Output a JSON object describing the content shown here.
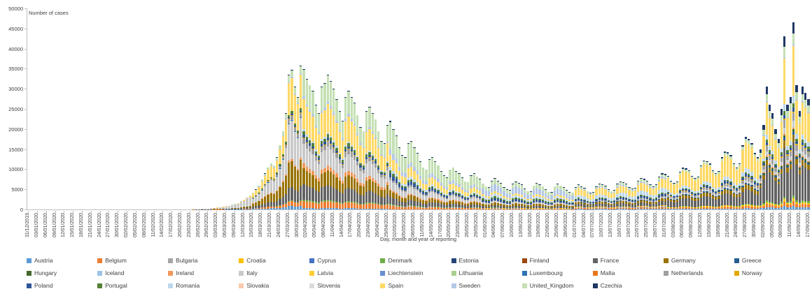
{
  "chart_data": {
    "type": "stacked_bar",
    "title": "",
    "ylabel": "Number of cases",
    "xlabel": "Day, month and year of reporting",
    "ylim": [
      0,
      50000
    ],
    "y_ticks": [
      0,
      5000,
      10000,
      15000,
      20000,
      25000,
      30000,
      35000,
      40000,
      45000,
      50000
    ],
    "grid": false,
    "legend_position": "bottom",
    "x_tick_every_days": 3,
    "x_tick_labels": [
      "31/12/2019",
      "03/01/2020",
      "06/01/2020",
      "09/01/2020",
      "12/01/2020",
      "15/01/2020",
      "18/01/2020",
      "21/01/2020",
      "24/01/2020",
      "27/01/2020",
      "30/01/2020",
      "02/02/2020",
      "05/02/2020",
      "08/02/2020",
      "11/02/2020",
      "14/02/2020",
      "17/02/2020",
      "20/02/2020",
      "23/02/2020",
      "26/02/2020",
      "29/02/2020",
      "03/03/2020",
      "06/03/2020",
      "09/03/2020",
      "12/03/2020",
      "15/03/2020",
      "18/03/2020",
      "21/03/2020",
      "24/03/2020",
      "27/03/2020",
      "30/03/2020",
      "02/04/2020",
      "05/04/2020",
      "08/04/2020",
      "11/04/2020",
      "14/04/2020",
      "17/04/2020",
      "20/04/2020",
      "23/04/2020",
      "26/04/2020",
      "29/04/2020",
      "02/05/2020",
      "05/05/2020",
      "08/05/2020",
      "11/05/2020",
      "14/05/2020",
      "17/05/2020",
      "20/05/2020",
      "23/05/2020",
      "26/05/2020",
      "29/05/2020",
      "01/06/2020",
      "04/06/2020",
      "07/06/2020",
      "10/06/2020",
      "13/06/2020",
      "16/06/2020",
      "19/06/2020",
      "22/06/2020",
      "25/06/2020",
      "28/06/2020",
      "01/07/2020",
      "04/07/2020",
      "07/07/2020",
      "10/07/2020",
      "13/07/2020",
      "16/07/2020",
      "19/07/2020",
      "22/07/2020",
      "25/07/2020",
      "28/07/2020",
      "31/07/2020",
      "03/08/2020",
      "06/08/2020",
      "09/08/2020",
      "12/08/2020",
      "15/08/2020",
      "18/08/2020",
      "21/08/2020",
      "24/08/2020",
      "27/08/2020",
      "30/08/2020",
      "02/09/2020",
      "05/09/2020",
      "08/09/2020",
      "11/09/2020",
      "14/09/2020",
      "17/09/2020"
    ],
    "countries": [
      {
        "name": "Austria",
        "color": "#5B9BD5"
      },
      {
        "name": "Belgium",
        "color": "#ED7D31"
      },
      {
        "name": "Bulgaria",
        "color": "#A5A5A5"
      },
      {
        "name": "Croatia",
        "color": "#FFC000"
      },
      {
        "name": "Cyprus",
        "color": "#4472C4"
      },
      {
        "name": "Denmark",
        "color": "#70AD47"
      },
      {
        "name": "Estonia",
        "color": "#264478"
      },
      {
        "name": "Finland",
        "color": "#9E480E"
      },
      {
        "name": "France",
        "color": "#636363"
      },
      {
        "name": "Germany",
        "color": "#997300"
      },
      {
        "name": "Greece",
        "color": "#255E91"
      },
      {
        "name": "Hungary",
        "color": "#43682B"
      },
      {
        "name": "Iceland",
        "color": "#9DC3E6"
      },
      {
        "name": "Ireland",
        "color": "#F1975A"
      },
      {
        "name": "Italy",
        "color": "#C9C9C9"
      },
      {
        "name": "Latvia",
        "color": "#FFCD33"
      },
      {
        "name": "Liechtenstein",
        "color": "#698ED0"
      },
      {
        "name": "Lithuania",
        "color": "#A9D18E"
      },
      {
        "name": "Luxembourg",
        "color": "#2E75B6"
      },
      {
        "name": "Malta",
        "color": "#E8761B"
      },
      {
        "name": "Netherlands",
        "color": "#9E9E9E"
      },
      {
        "name": "Norway",
        "color": "#E3A800"
      },
      {
        "name": "Poland",
        "color": "#2F5597"
      },
      {
        "name": "Portugal",
        "color": "#538135"
      },
      {
        "name": "Romania",
        "color": "#BDD7EE"
      },
      {
        "name": "Slovakia",
        "color": "#F8CBAD"
      },
      {
        "name": "Slovenia",
        "color": "#DBDBDB"
      },
      {
        "name": "Spain",
        "color": "#FFD966"
      },
      {
        "name": "Sweden",
        "color": "#B4C7E7"
      },
      {
        "name": "United_Kingdom",
        "color": "#C5E0B4"
      },
      {
        "name": "Czechia",
        "color": "#1F3864"
      }
    ],
    "daily_totals": [
      0,
      0,
      0,
      0,
      0,
      0,
      0,
      0,
      0,
      0,
      0,
      0,
      0,
      0,
      0,
      0,
      0,
      0,
      0,
      0,
      0,
      0,
      0,
      0,
      0,
      0,
      0,
      0,
      0,
      0,
      0,
      5,
      5,
      5,
      8,
      8,
      8,
      10,
      10,
      10,
      10,
      12,
      12,
      12,
      12,
      12,
      12,
      12,
      10,
      10,
      10,
      10,
      10,
      15,
      15,
      20,
      30,
      90,
      130,
      190,
      260,
      310,
      360,
      460,
      560,
      680,
      820,
      950,
      1150,
      1350,
      1650,
      2050,
      2450,
      2950,
      3450,
      4200,
      5000,
      6000,
      7500,
      9000,
      10500,
      11500,
      11000,
      13000,
      16000,
      19500,
      24000,
      33500,
      34800,
      30500,
      28000,
      35800,
      35000,
      32500,
      31000,
      29500,
      26000,
      24000,
      30500,
      31500,
      33500,
      32000,
      30000,
      27500,
      24500,
      22000,
      28000,
      29500,
      28000,
      26500,
      23500,
      20500,
      19500,
      24500,
      25500,
      24000,
      22500,
      19500,
      17000,
      16500,
      21000,
      22000,
      20000,
      18500,
      15500,
      13500,
      13000,
      16500,
      17000,
      15500,
      14000,
      12000,
      10500,
      10000,
      12500,
      13000,
      12000,
      11000,
      9500,
      8500,
      8000,
      10000,
      10500,
      9500,
      9000,
      8000,
      7000,
      6800,
      8500,
      9000,
      8200,
      7600,
      6500,
      5800,
      5600,
      7200,
      7800,
      7200,
      6600,
      5600,
      5000,
      4800,
      6400,
      7000,
      6600,
      6200,
      5200,
      4600,
      4500,
      6000,
      6600,
      6200,
      5800,
      5000,
      4400,
      4300,
      5800,
      6400,
      6000,
      5600,
      4800,
      4300,
      4200,
      5600,
      6200,
      5800,
      5400,
      4600,
      4200,
      4300,
      5800,
      6400,
      6200,
      5900,
      5000,
      4600,
      4800,
      6400,
      7000,
      6800,
      6500,
      5600,
      5200,
      5400,
      7200,
      7800,
      7600,
      7200,
      6200,
      5800,
      6200,
      8200,
      9000,
      8800,
      8400,
      7200,
      6600,
      7000,
      9400,
      10400,
      10200,
      9800,
      8400,
      7800,
      8200,
      11000,
      12200,
      12000,
      11400,
      9800,
      9000,
      9600,
      13000,
      14400,
      14200,
      13500,
      11500,
      10500,
      11500,
      16000,
      18000,
      17500,
      16500,
      14000,
      13000,
      15000,
      21000,
      30500,
      26000,
      24000,
      20000,
      17500,
      25000,
      43000,
      26000,
      28000,
      46500,
      31000,
      24500,
      30500,
      29000,
      27500
    ],
    "composition_phases": [
      {
        "from": 0,
        "to": 57,
        "weights": {
          "Italy": 3,
          "France": 3,
          "Germany": 2,
          "Austria": 1,
          "Belgium": 1
        }
      },
      {
        "from": 57,
        "to": 75,
        "weights": {
          "Italy": 60,
          "France": 12,
          "Germany": 10,
          "Spain": 9,
          "Austria": 2,
          "Belgium": 2,
          "Netherlands": 2,
          "United_Kingdom": 2,
          "Sweden": 1
        }
      },
      {
        "from": 75,
        "to": 92,
        "weights": {
          "Italy": 28,
          "Spain": 24,
          "Germany": 19,
          "France": 10,
          "United_Kingdom": 5,
          "Belgium": 3.5,
          "Netherlands": 3,
          "Austria": 2.5,
          "Portugal": 2,
          "Ireland": 1.5,
          "Sweden": 1,
          "Poland": 1,
          "Denmark": 0.5,
          "Czechia": 0.5,
          "Norway": 0.5,
          "Luxembourg": 0.5
        }
      },
      {
        "from": 92,
        "to": 121,
        "weights": {
          "Spain": 21,
          "United_Kingdom": 19,
          "Italy": 14,
          "Germany": 11,
          "France": 11,
          "Belgium": 5,
          "Netherlands": 4,
          "Ireland": 3.5,
          "Portugal": 2.5,
          "Sweden": 2,
          "Poland": 2,
          "Romania": 1.5,
          "Austria": 1,
          "Denmark": 1,
          "Czechia": 0.5,
          "Norway": 0.5
        }
      },
      {
        "from": 121,
        "to": 152,
        "weights": {
          "United_Kingdom": 30,
          "Spain": 14,
          "Italy": 10,
          "France": 8,
          "Germany": 7,
          "Sweden": 7,
          "Poland": 5,
          "Belgium": 4,
          "Romania": 4,
          "Netherlands": 3,
          "Portugal": 3,
          "Ireland": 2,
          "Denmark": 1,
          "Bulgaria": 1,
          "Czechia": 1
        }
      },
      {
        "from": 152,
        "to": 183,
        "weights": {
          "Sweden": 22,
          "United_Kingdom": 16,
          "Romania": 8,
          "Germany": 8,
          "Spain": 7,
          "Poland": 7,
          "France": 7,
          "Portugal": 6,
          "Italy": 5,
          "Bulgaria": 2,
          "Czechia": 2,
          "Belgium": 2,
          "Netherlands": 1.5,
          "Croatia": 1,
          "Denmark": 1
        }
      },
      {
        "from": 183,
        "to": 214,
        "weights": {
          "Spain": 24,
          "Romania": 13,
          "France": 11,
          "United_Kingdom": 7,
          "Germany": 7,
          "Poland": 6,
          "Sweden": 4,
          "Belgium": 4,
          "Portugal": 3,
          "Netherlands": 3,
          "Bulgaria": 3,
          "Czechia": 2.5,
          "Croatia": 2,
          "Greece": 1.5,
          "Austria": 1.5,
          "Italy": 2
        }
      },
      {
        "from": 214,
        "to": 245,
        "weights": {
          "Spain": 34,
          "France": 19,
          "Germany": 7,
          "Romania": 6,
          "United_Kingdom": 5,
          "Netherlands": 4,
          "Poland": 3.5,
          "Italy": 3,
          "Belgium": 3,
          "Greece": 2,
          "Czechia": 2,
          "Croatia": 2,
          "Austria": 1.5,
          "Portugal": 2,
          "Denmark": 1,
          "Norway": 1
        }
      },
      {
        "from": 245,
        "to": 262,
        "weights": {
          "France": 29,
          "Spain": 27,
          "United_Kingdom": 6,
          "Czechia": 6,
          "Germany": 4.5,
          "Netherlands": 4.5,
          "Romania": 4,
          "Italy": 3.5,
          "Belgium": 2.5,
          "Portugal": 2.5,
          "Austria": 2,
          "Poland": 2,
          "Hungary": 1.5,
          "Croatia": 1.5,
          "Denmark": 1.5,
          "Greece": 1.3,
          "Ireland": 1,
          "Sweden": 1,
          "Norway": 0.8
        }
      }
    ]
  }
}
